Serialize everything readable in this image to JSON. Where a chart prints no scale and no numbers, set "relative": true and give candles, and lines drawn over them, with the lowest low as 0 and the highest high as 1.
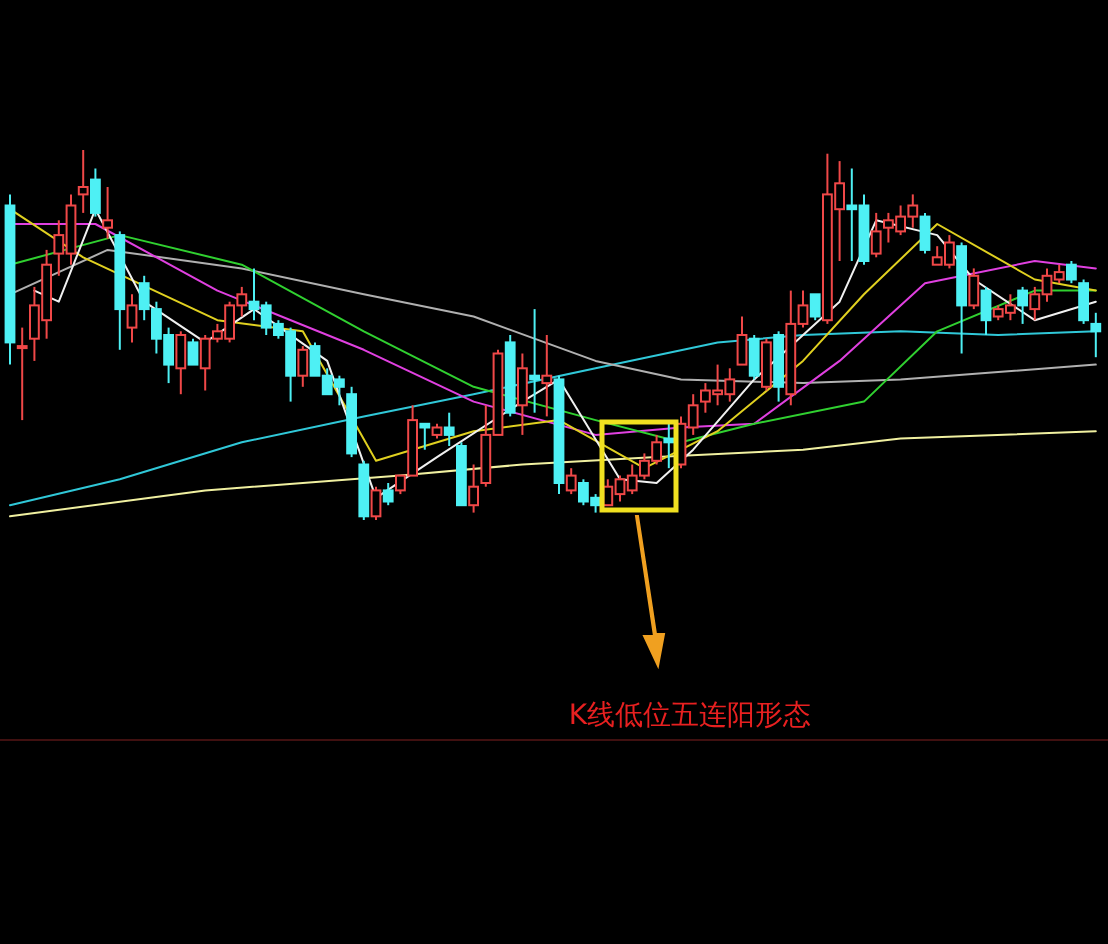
{
  "chart_data": {
    "type": "candlestick",
    "relative": true,
    "categories": [
      null,
      null,
      null,
      null,
      null,
      null,
      null,
      null,
      null,
      null,
      null,
      null,
      null,
      null,
      null,
      null,
      null,
      null,
      null,
      null,
      null,
      null,
      null,
      null,
      null,
      null,
      null,
      null,
      null,
      null,
      null,
      null,
      null,
      null,
      null,
      null,
      null,
      null,
      null,
      null,
      null,
      null,
      null,
      null,
      null,
      null,
      null,
      null,
      null,
      null,
      null,
      null,
      null,
      null,
      null,
      null,
      null,
      null,
      null,
      null,
      null,
      null,
      null,
      null,
      null,
      null,
      null,
      null,
      null,
      null,
      null,
      null,
      null,
      null,
      null,
      null,
      null,
      null,
      null,
      null,
      null,
      null,
      null,
      null,
      null,
      null,
      null,
      null,
      null,
      null
    ],
    "colors": [
      "#4ef0f4",
      "#f04848",
      "#f04848",
      "#f04848",
      "#f04848",
      "#f04848",
      "#f04848",
      "#4ef0f4",
      "#f04848",
      "#4ef0f4",
      "#f04848",
      "#4ef0f4",
      "#4ef0f4",
      "#4ef0f4",
      "#f04848",
      "#4ef0f4",
      "#f04848",
      "#f04848",
      "#f04848",
      "#f04848",
      "#4ef0f4",
      "#4ef0f4",
      "#4ef0f4",
      "#4ef0f4",
      "#f04848",
      "#4ef0f4",
      "#4ef0f4",
      "#4ef0f4",
      "#4ef0f4",
      "#4ef0f4",
      "#f04848",
      "#4ef0f4",
      "#f04848",
      "#f04848",
      "#4ef0f4",
      "#f04848",
      "#4ef0f4",
      "#4ef0f4",
      "#f04848",
      "#f04848",
      "#f04848",
      "#4ef0f4",
      "#f04848",
      "#4ef0f4",
      "#f04848",
      "#4ef0f4",
      "#f04848",
      "#4ef0f4",
      "#4ef0f4",
      "#f04848",
      "#f04848",
      "#f04848",
      "#f04848",
      "#f04848",
      "#4ef0f4",
      "#f04848",
      "#f04848",
      "#f04848",
      "#f04848",
      "#f04848",
      "#f04848",
      "#4ef0f4",
      "#f04848",
      "#4ef0f4",
      "#f04848",
      "#f04848",
      "#4ef0f4",
      "#f04848",
      "#f04848",
      "#4ef0f4",
      "#4ef0f4",
      "#f04848",
      "#f04848",
      "#f04848",
      "#f04848",
      "#4ef0f4",
      "#f04848",
      "#f04848",
      "#4ef0f4",
      "#f04848",
      "#4ef0f4",
      "#f04848",
      "#f04848",
      "#4ef0f4",
      "#f04848",
      "#f04848",
      "#f04848",
      "#4ef0f4",
      "#4ef0f4",
      "#4ef0f4"
    ],
    "ohlc": [
      [
        0.85,
        0.88,
        0.42,
        0.48
      ],
      [
        0.47,
        0.52,
        0.27,
        0.47
      ],
      [
        0.49,
        0.63,
        0.43,
        0.58
      ],
      [
        0.54,
        0.73,
        0.49,
        0.69
      ],
      [
        0.72,
        0.81,
        0.66,
        0.77
      ],
      [
        0.72,
        0.88,
        0.69,
        0.85
      ],
      [
        0.88,
        1,
        0.83,
        0.9
      ],
      [
        0.92,
        0.95,
        0.82,
        0.83
      ],
      [
        0.79,
        0.9,
        0.76,
        0.81
      ],
      [
        0.77,
        0.78,
        0.46,
        0.57
      ],
      [
        0.52,
        0.61,
        0.48,
        0.58
      ],
      [
        0.64,
        0.66,
        0.54,
        0.57
      ],
      [
        0.57,
        0.59,
        0.45,
        0.49
      ],
      [
        0.5,
        0.52,
        0.37,
        0.42
      ],
      [
        0.41,
        0.51,
        0.34,
        0.5
      ],
      [
        0.48,
        0.49,
        0.42,
        0.42
      ],
      [
        0.41,
        0.5,
        0.35,
        0.49
      ],
      [
        0.49,
        0.53,
        0.48,
        0.51
      ],
      [
        0.49,
        0.59,
        0.48,
        0.58
      ],
      [
        0.58,
        0.63,
        0.55,
        0.61
      ],
      [
        0.59,
        0.68,
        0.54,
        0.57
      ],
      [
        0.58,
        0.59,
        0.5,
        0.52
      ],
      [
        0.53,
        0.54,
        0.49,
        0.5
      ],
      [
        0.51,
        0.52,
        0.32,
        0.39
      ],
      [
        0.39,
        0.47,
        0.36,
        0.46
      ],
      [
        0.47,
        0.48,
        0.39,
        0.39
      ],
      [
        0.39,
        0.41,
        0.34,
        0.34
      ],
      [
        0.38,
        0.39,
        0.31,
        0.36
      ],
      [
        0.34,
        0.36,
        0.17,
        0.18
      ],
      [
        0.15,
        0.16,
        0,
        0.01
      ],
      [
        0.01,
        0.09,
        0,
        0.08
      ],
      [
        0.08,
        0.1,
        0.04,
        0.05
      ],
      [
        0.08,
        0.12,
        0.07,
        0.12
      ],
      [
        0.12,
        0.31,
        0.12,
        0.27
      ],
      [
        0.26,
        0.26,
        0.19,
        0.25
      ],
      [
        0.23,
        0.26,
        0.22,
        0.25
      ],
      [
        0.25,
        0.29,
        0.2,
        0.23
      ],
      [
        0.2,
        0.21,
        0.04,
        0.04
      ],
      [
        0.04,
        0.15,
        0.02,
        0.09
      ],
      [
        0.1,
        0.31,
        0.09,
        0.23
      ],
      [
        0.23,
        0.46,
        0.23,
        0.45
      ],
      [
        0.48,
        0.5,
        0.28,
        0.29
      ],
      [
        0.31,
        0.45,
        0.23,
        0.41
      ],
      [
        0.39,
        0.57,
        0.29,
        0.38
      ],
      [
        0.37,
        0.5,
        0.28,
        0.39
      ],
      [
        0.38,
        0.39,
        0.07,
        0.1
      ],
      [
        0.08,
        0.14,
        0.07,
        0.12
      ],
      [
        0.1,
        0.11,
        0.04,
        0.05
      ],
      [
        0.06,
        0.07,
        0.02,
        0.04
      ],
      [
        0.04,
        0.11,
        0.04,
        0.09
      ],
      [
        0.07,
        0.12,
        0.05,
        0.11
      ],
      [
        0.08,
        0.15,
        0.07,
        0.12
      ],
      [
        0.12,
        0.18,
        0.11,
        0.16
      ],
      [
        0.16,
        0.23,
        0.15,
        0.21
      ],
      [
        0.22,
        0.27,
        0.14,
        0.21
      ],
      [
        0.15,
        0.28,
        0.14,
        0.26
      ],
      [
        0.25,
        0.34,
        0.23,
        0.31
      ],
      [
        0.32,
        0.37,
        0.29,
        0.35
      ],
      [
        0.34,
        0.42,
        0.31,
        0.35
      ],
      [
        0.34,
        0.41,
        0.32,
        0.38
      ],
      [
        0.42,
        0.55,
        0.42,
        0.5
      ],
      [
        0.49,
        0.5,
        0.38,
        0.39
      ],
      [
        0.36,
        0.49,
        0.35,
        0.48
      ],
      [
        0.5,
        0.51,
        0.32,
        0.36
      ],
      [
        0.34,
        0.62,
        0.31,
        0.53
      ],
      [
        0.53,
        0.62,
        0.52,
        0.58
      ],
      [
        0.61,
        0.61,
        0.54,
        0.55
      ],
      [
        0.54,
        0.99,
        0.53,
        0.88
      ],
      [
        0.84,
        0.97,
        0.7,
        0.91
      ],
      [
        0.85,
        0.95,
        0.7,
        0.84
      ],
      [
        0.85,
        0.88,
        0.69,
        0.7
      ],
      [
        0.72,
        0.83,
        0.71,
        0.78
      ],
      [
        0.79,
        0.83,
        0.75,
        0.81
      ],
      [
        0.78,
        0.85,
        0.77,
        0.82
      ],
      [
        0.82,
        0.88,
        0.79,
        0.85
      ],
      [
        0.82,
        0.83,
        0.72,
        0.73
      ],
      [
        0.69,
        0.74,
        0.69,
        0.71
      ],
      [
        0.69,
        0.77,
        0.68,
        0.75
      ],
      [
        0.74,
        0.75,
        0.45,
        0.58
      ],
      [
        0.58,
        0.68,
        0.57,
        0.66
      ],
      [
        0.62,
        0.63,
        0.5,
        0.54
      ],
      [
        0.55,
        0.58,
        0.54,
        0.57
      ],
      [
        0.56,
        0.61,
        0.54,
        0.58
      ],
      [
        0.62,
        0.63,
        0.53,
        0.58
      ],
      [
        0.57,
        0.63,
        0.54,
        0.61
      ],
      [
        0.61,
        0.68,
        0.59,
        0.66
      ],
      [
        0.65,
        0.69,
        0.64,
        0.67
      ],
      [
        0.69,
        0.7,
        0.64,
        0.65
      ],
      [
        0.64,
        0.65,
        0.53,
        0.54
      ],
      [
        0.53,
        0.56,
        0.44,
        0.51
      ]
    ],
    "series": [
      {
        "type": "line",
        "color": "#f0f0a0",
        "values": [
          0.01,
          null,
          null,
          null,
          null,
          null,
          null,
          null,
          null,
          null,
          null,
          null,
          null,
          null,
          null,
          null,
          0.08,
          null,
          null,
          null,
          null,
          null,
          null,
          null,
          null,
          null,
          null,
          null,
          null,
          null,
          null,
          null,
          0.12,
          null,
          null,
          null,
          null,
          null,
          null,
          null,
          null,
          null,
          0.15,
          null,
          null,
          null,
          null,
          null,
          null,
          null,
          null,
          null,
          null,
          0.17,
          null,
          null,
          null,
          null,
          null,
          null,
          null,
          null,
          null,
          null,
          null,
          0.19,
          null,
          null,
          null,
          null,
          null,
          null,
          null,
          0.22,
          null,
          null,
          null,
          null,
          null,
          null,
          null,
          null,
          null,
          null,
          null,
          null,
          null,
          null,
          null,
          0.24
        ]
      },
      {
        "type": "line",
        "color": "#30c8d8",
        "values": [
          0.04,
          null,
          null,
          null,
          null,
          null,
          null,
          null,
          null,
          0.11,
          null,
          null,
          null,
          null,
          null,
          null,
          null,
          null,
          null,
          0.21,
          null,
          null,
          null,
          null,
          null,
          null,
          null,
          null,
          null,
          0.28,
          null,
          null,
          null,
          null,
          null,
          null,
          null,
          null,
          0.34,
          null,
          null,
          null,
          null,
          null,
          null,
          null,
          null,
          null,
          0.41,
          null,
          null,
          null,
          null,
          null,
          null,
          null,
          null,
          null,
          0.48,
          null,
          null,
          null,
          null,
          null,
          null,
          0.5,
          null,
          null,
          null,
          null,
          null,
          null,
          null,
          0.51,
          null,
          null,
          null,
          null,
          null,
          null,
          null,
          0.5,
          null,
          null,
          null,
          null,
          null,
          null,
          null,
          0.51
        ]
      },
      {
        "type": "line",
        "color": "#b0b0b0",
        "values": [
          0.61,
          null,
          null,
          null,
          null,
          null,
          null,
          null,
          0.73,
          null,
          null,
          null,
          null,
          null,
          null,
          null,
          null,
          null,
          null,
          0.68,
          null,
          null,
          null,
          null,
          null,
          null,
          null,
          null,
          null,
          0.61,
          null,
          null,
          null,
          null,
          null,
          null,
          null,
          null,
          0.55,
          null,
          null,
          null,
          null,
          null,
          null,
          null,
          null,
          null,
          0.43,
          null,
          null,
          null,
          null,
          null,
          null,
          0.38,
          null,
          null,
          null,
          null,
          null,
          null,
          null,
          null,
          null,
          0.37,
          null,
          null,
          null,
          null,
          null,
          null,
          null,
          0.38,
          null,
          null,
          null,
          null,
          null,
          null,
          null,
          0.4,
          null,
          null,
          null,
          null,
          null,
          null,
          null,
          0.42
        ]
      },
      {
        "type": "line",
        "color": "#e040e0",
        "values": [
          0.8,
          null,
          null,
          null,
          null,
          null,
          null,
          0.8,
          null,
          null,
          null,
          null,
          null,
          null,
          null,
          null,
          null,
          0.62,
          null,
          null,
          null,
          null,
          null,
          null,
          null,
          null,
          null,
          null,
          null,
          0.46,
          null,
          null,
          null,
          null,
          null,
          null,
          null,
          null,
          0.32,
          null,
          null,
          null,
          null,
          null,
          null,
          null,
          null,
          null,
          0.23,
          null,
          null,
          null,
          null,
          null,
          null,
          0.25,
          null,
          null,
          null,
          null,
          null,
          0.26,
          null,
          null,
          null,
          null,
          null,
          null,
          0.43,
          null,
          null,
          null,
          null,
          null,
          null,
          0.64,
          null,
          null,
          null,
          null,
          null,
          null,
          null,
          null,
          0.7,
          null,
          null,
          null,
          null,
          0.68
        ]
      },
      {
        "type": "line",
        "color": "#30d030",
        "values": [
          0.69,
          null,
          null,
          null,
          null,
          null,
          null,
          null,
          null,
          0.77,
          null,
          null,
          null,
          null,
          null,
          null,
          null,
          null,
          null,
          0.69,
          null,
          null,
          null,
          null,
          null,
          null,
          null,
          null,
          null,
          0.51,
          null,
          null,
          null,
          null,
          null,
          null,
          null,
          null,
          0.36,
          null,
          null,
          null,
          null,
          null,
          null,
          null,
          null,
          null,
          0.27,
          null,
          null,
          null,
          null,
          null,
          null,
          0.21,
          null,
          null,
          null,
          null,
          null,
          0.26,
          null,
          null,
          null,
          null,
          null,
          null,
          null,
          null,
          0.32,
          null,
          null,
          null,
          null,
          null,
          0.51,
          null,
          null,
          null,
          null,
          null,
          null,
          null,
          0.62,
          null,
          null,
          null,
          null,
          0.62
        ]
      },
      {
        "type": "line",
        "color": "#e0d020",
        "values": [
          0.84,
          null,
          null,
          null,
          null,
          null,
          0.71,
          null,
          null,
          null,
          null,
          null,
          null,
          null,
          null,
          null,
          null,
          0.54,
          null,
          null,
          null,
          null,
          null,
          null,
          0.51,
          null,
          null,
          null,
          null,
          null,
          0.16,
          null,
          null,
          null,
          null,
          null,
          null,
          null,
          0.24,
          null,
          null,
          null,
          null,
          null,
          null,
          0.27,
          null,
          null,
          null,
          null,
          null,
          null,
          0.14,
          null,
          null,
          null,
          null,
          null,
          0.24,
          null,
          null,
          null,
          null,
          null,
          null,
          0.43,
          null,
          null,
          null,
          null,
          0.61,
          null,
          null,
          null,
          null,
          null,
          0.8,
          null,
          null,
          null,
          null,
          null,
          null,
          null,
          0.65,
          null,
          null,
          null,
          null,
          0.62
        ]
      },
      {
        "type": "line",
        "color": "#f0f0f0",
        "values": [
          null,
          null,
          0.62,
          null,
          0.59,
          null,
          null,
          0.84,
          null,
          null,
          null,
          0.59,
          null,
          null,
          null,
          null,
          0.48,
          null,
          null,
          null,
          0.57,
          null,
          null,
          null,
          null,
          null,
          0.43,
          null,
          null,
          null,
          0.06,
          null,
          null,
          null,
          null,
          0.17,
          null,
          null,
          null,
          null,
          null,
          null,
          0.32,
          null,
          null,
          0.38,
          null,
          null,
          null,
          null,
          0.11,
          null,
          null,
          0.1,
          null,
          null,
          0.19,
          null,
          null,
          null,
          null,
          0.38,
          null,
          null,
          null,
          null,
          null,
          null,
          0.59,
          null,
          null,
          0.81,
          null,
          null,
          null,
          null,
          0.77,
          null,
          null,
          0.65,
          null,
          null,
          null,
          null,
          0.54,
          null,
          null,
          null,
          null,
          0.59
        ]
      }
    ],
    "annotations": [
      "K线低位五连阳形态"
    ]
  }
}
